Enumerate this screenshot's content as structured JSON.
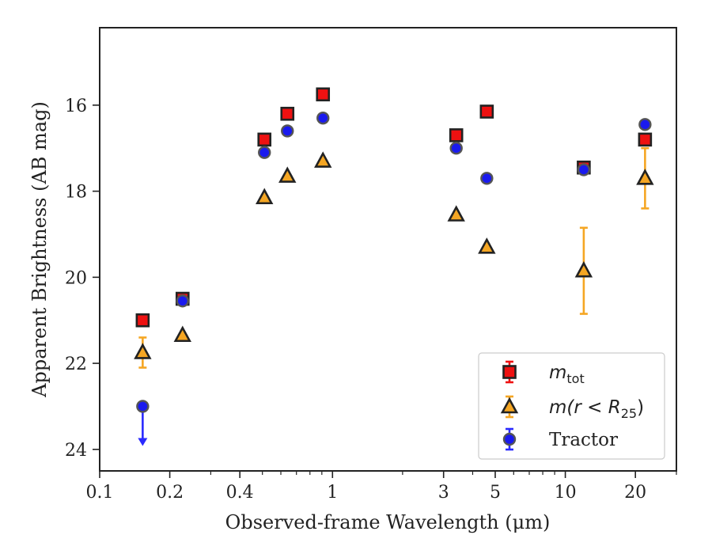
{
  "chart_data": {
    "type": "scatter",
    "xlabel": "Observed-frame Wavelength (μm)",
    "ylabel": "Apparent Brightness (AB mag)",
    "xscale": "log",
    "xlim": [
      0.1,
      30
    ],
    "ylim": [
      24.5,
      14.2
    ],
    "y_inverted": true,
    "xticks": [
      0.1,
      0.2,
      0.4,
      1,
      3,
      5,
      10,
      20
    ],
    "xtick_labels": [
      "0.1",
      "0.2",
      "0.4",
      "1",
      "3",
      "5",
      "10",
      "20"
    ],
    "yticks": [
      16,
      18,
      20,
      22,
      24
    ],
    "ytick_labels": [
      "16",
      "18",
      "20",
      "22",
      "24"
    ],
    "grid": false,
    "legend_position": "bottom-right",
    "series": [
      {
        "name": "m_tot",
        "legend_main": "m",
        "legend_sub": "tot",
        "marker": "square",
        "color": "#ee1111",
        "edge_color": "#222222",
        "errorbar_color": "#ee1111",
        "points": [
          {
            "x": 0.153,
            "y": 21.0
          },
          {
            "x": 0.227,
            "y": 20.5
          },
          {
            "x": 0.51,
            "y": 16.8
          },
          {
            "x": 0.64,
            "y": 16.2
          },
          {
            "x": 0.91,
            "y": 15.75
          },
          {
            "x": 3.4,
            "y": 16.7
          },
          {
            "x": 4.6,
            "y": 16.15
          },
          {
            "x": 12.0,
            "y": 17.45
          },
          {
            "x": 22.0,
            "y": 16.8
          }
        ]
      },
      {
        "name": "m(r < R25)",
        "legend_main": "m(r < R",
        "legend_sub": "25",
        "legend_tail": ")",
        "marker": "triangle",
        "color": "#f5a623",
        "edge_color": "#222222",
        "errorbar_color": "#f5a623",
        "points": [
          {
            "x": 0.153,
            "y": 21.75,
            "yerr": 0.35
          },
          {
            "x": 0.227,
            "y": 21.35
          },
          {
            "x": 0.51,
            "y": 18.15
          },
          {
            "x": 0.64,
            "y": 17.65
          },
          {
            "x": 0.91,
            "y": 17.3
          },
          {
            "x": 3.4,
            "y": 18.55
          },
          {
            "x": 4.6,
            "y": 19.3
          },
          {
            "x": 12.0,
            "y": 19.85,
            "yerr": 1.0
          },
          {
            "x": 22.0,
            "y": 17.7,
            "yerr": 0.7
          }
        ]
      },
      {
        "name": "Tractor",
        "legend_main": "Tractor",
        "marker": "circle",
        "color": "#1a1aee",
        "edge_color": "#555555",
        "errorbar_color": "#2a2aff",
        "points": [
          {
            "x": 0.153,
            "y": 23.0,
            "upper_limit": true
          },
          {
            "x": 0.227,
            "y": 20.55
          },
          {
            "x": 0.51,
            "y": 17.1
          },
          {
            "x": 0.64,
            "y": 16.6
          },
          {
            "x": 0.91,
            "y": 16.3
          },
          {
            "x": 3.4,
            "y": 17.0
          },
          {
            "x": 4.6,
            "y": 17.7
          },
          {
            "x": 12.0,
            "y": 17.5
          },
          {
            "x": 22.0,
            "y": 16.45
          }
        ]
      }
    ]
  }
}
